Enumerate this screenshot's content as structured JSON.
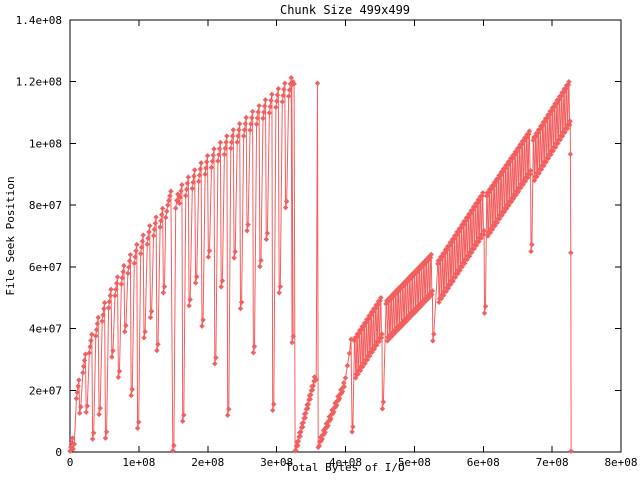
{
  "chart_data": {
    "type": "line",
    "title": "Chunk Size 499x499",
    "xlabel": "Total Bytes of I/O",
    "ylabel": "File Seek Position",
    "xlim": [
      0,
      800000000.0
    ],
    "ylim": [
      0,
      140000000.0
    ],
    "xticks": [
      0,
      100000000.0,
      200000000.0,
      300000000.0,
      400000000.0,
      500000000.0,
      600000000.0,
      700000000.0,
      800000000.0
    ],
    "xtick_labels": [
      "0",
      "1e+08",
      "2e+08",
      "3e+08",
      "4e+08",
      "5e+08",
      "6e+08",
      "7e+08",
      "8e+08"
    ],
    "yticks": [
      0,
      20000000.0,
      40000000.0,
      60000000.0,
      80000000.0,
      100000000.0,
      120000000.0,
      140000000.0
    ],
    "ytick_labels": [
      "0",
      "2e+07",
      "4e+07",
      "6e+07",
      "8e+07",
      "1e+08",
      "1.2e+08",
      "1.4e+08"
    ],
    "grid": false,
    "legend": "none",
    "marker": "diamond",
    "colors": {
      "series": "#f25f5f",
      "axis": "#000000",
      "background": "#ffffff",
      "text": "#000000"
    },
    "value_unit_multiplier": 1000000,
    "shapes": {
      "tooth": [
        [
          0,
          -3,
          "u"
        ],
        [
          1.2,
          -1,
          "u"
        ],
        [
          2.4,
          1,
          "u"
        ],
        [
          3.6,
          3,
          "u"
        ],
        [
          4.8,
          0,
          "d"
        ],
        [
          6.4,
          2,
          "d"
        ]
      ],
      "stair": [
        [
          0,
          0
        ],
        [
          0.9,
          1.4
        ],
        [
          1.8,
          2.8
        ],
        [
          2.7,
          1.6
        ]
      ],
      "stroke": [
        [
          0,
          -1,
          "t"
        ],
        [
          0.8,
          0,
          "t"
        ],
        [
          1.8,
          0,
          "b"
        ],
        [
          2.6,
          1.2,
          "b"
        ]
      ]
    },
    "segments": [
      {
        "kind": "points",
        "name": "origin-cluster",
        "pts": [
          [
            0,
            0.3
          ],
          [
            1.2,
            1.6
          ],
          [
            2.4,
            3
          ],
          [
            3.6,
            4.5
          ],
          [
            4.6,
            1
          ],
          [
            6.2,
            2.6
          ]
        ]
      },
      {
        "kind": "teeth",
        "name": "phase1-sawtooth-a",
        "items": [
          [
            9.3,
            20.3,
            12.6
          ],
          [
            18.7,
            28.7,
            12.9
          ],
          [
            28,
            35.1,
            4.2
          ],
          [
            37.4,
            40.6,
            12.2
          ],
          [
            46.7,
            45.4,
            4.5
          ],
          [
            56,
            49.7,
            30.8
          ],
          [
            65.4,
            53.7,
            24.2
          ],
          [
            74.7,
            57.4,
            39
          ],
          [
            84.1,
            60.9,
            18.3
          ],
          [
            93.4,
            64.2,
            7.7
          ],
          [
            102.7,
            67.3,
            37
          ],
          [
            112.1,
            70.3,
            43.6
          ],
          [
            121.4,
            73.1,
            32.9
          ],
          [
            130.8,
            75.9,
            51.6
          ]
        ]
      },
      {
        "kind": "points",
        "name": "mid-reset-to-zero",
        "pts": [
          [
            139,
            76
          ],
          [
            140.5,
            78
          ],
          [
            142,
            80
          ],
          [
            143.5,
            81.5
          ],
          [
            145,
            83
          ],
          [
            146.5,
            84.5
          ],
          [
            149.2,
            0.4
          ],
          [
            150.9,
            2.1
          ],
          [
            153.5,
            79
          ],
          [
            155,
            81.5
          ],
          [
            156.5,
            83.5
          ]
        ]
      },
      {
        "kind": "teeth",
        "name": "phase1-sawtooth-b",
        "items": [
          [
            158.8,
            83.6,
            10
          ],
          [
            168.1,
            86.1,
            47.4
          ],
          [
            177.5,
            88.4,
            54.8
          ],
          [
            186.8,
            90.7,
            40.8
          ],
          [
            196.1,
            93,
            63.2
          ],
          [
            205.5,
            95.2,
            28.6
          ],
          [
            214.8,
            97.3,
            53.5
          ],
          [
            224.2,
            99.4,
            11.9
          ],
          [
            233.5,
            101.4,
            62.9
          ],
          [
            242.8,
            103.4,
            46.5
          ],
          [
            252.2,
            105.4,
            71.7
          ],
          [
            261.5,
            107.3,
            32.2
          ],
          [
            270.9,
            109.2,
            60.1
          ],
          [
            280.2,
            111.1,
            68.9
          ],
          [
            289.5,
            112.9,
            13.5
          ],
          [
            298.9,
            114.7,
            51.6
          ],
          [
            308.2,
            116.5,
            79.2
          ],
          [
            317.6,
            118.3,
            35.5
          ]
        ]
      },
      {
        "kind": "points",
        "name": "phase1-peak-reset",
        "pts": [
          [
            322,
            119
          ],
          [
            323.8,
            120
          ],
          [
            325.4,
            119.3
          ],
          [
            326.8,
            0.4
          ]
        ]
      },
      {
        "kind": "stairs",
        "name": "staircase-a",
        "steps": [
          [
            328,
            0.5
          ],
          [
            331.6,
            3.5
          ],
          [
            335.2,
            6.5
          ],
          [
            338.8,
            9.5
          ],
          [
            342.4,
            12.5
          ],
          [
            346,
            15.5
          ],
          [
            349.6,
            18.5
          ],
          [
            353.2,
            21.5
          ]
        ]
      },
      {
        "kind": "points",
        "name": "tall-spike",
        "pts": [
          [
            357.5,
            23.5
          ],
          [
            359.3,
            119.5
          ],
          [
            360.4,
            1.5
          ]
        ]
      },
      {
        "kind": "stairs",
        "name": "staircase-b",
        "steps": [
          [
            362,
            2
          ],
          [
            366.2,
            4.2
          ],
          [
            370.4,
            6.4
          ],
          [
            374.6,
            8.6
          ],
          [
            378.8,
            10.8
          ],
          [
            383,
            13
          ],
          [
            387.2,
            15.2
          ],
          [
            391.4,
            17.4
          ],
          [
            395.6,
            19.6
          ]
        ]
      },
      {
        "kind": "points",
        "name": "pre-tail-climb",
        "pts": [
          [
            400,
            24
          ],
          [
            402.8,
            28
          ],
          [
            405.6,
            32
          ],
          [
            408,
            36.5
          ],
          [
            409.6,
            6.5
          ],
          [
            410.8,
            8.2
          ]
        ]
      },
      {
        "kind": "strokes",
        "name": "caterpillar-1",
        "h": 13,
        "items": [
          [
            413,
            37
          ],
          [
            416.4,
            38.2
          ],
          [
            419.8,
            39.4
          ],
          [
            423.2,
            40.6
          ],
          [
            426.6,
            41.7
          ],
          [
            430,
            42.9
          ],
          [
            433.4,
            44.1
          ],
          [
            436.8,
            45.3
          ],
          [
            440.2,
            46.4
          ],
          [
            443.6,
            47.6
          ],
          [
            447,
            48.8
          ],
          [
            450.4,
            50
          ]
        ]
      },
      {
        "kind": "points",
        "name": "dip-1",
        "pts": [
          [
            453.6,
            14
          ],
          [
            455,
            16.2
          ]
        ]
      },
      {
        "kind": "strokes",
        "name": "caterpillar-2",
        "h": 13,
        "items": [
          [
            459,
            49
          ],
          [
            462.4,
            49.8
          ],
          [
            465.8,
            50.6
          ],
          [
            469.2,
            51.4
          ],
          [
            472.6,
            52.2
          ],
          [
            476,
            53
          ],
          [
            479.4,
            53.7
          ],
          [
            482.8,
            54.5
          ],
          [
            486.2,
            55.3
          ],
          [
            489.6,
            56.1
          ],
          [
            493,
            56.9
          ],
          [
            496.4,
            57.7
          ],
          [
            499.8,
            58.4
          ],
          [
            503.2,
            59.2
          ],
          [
            506.6,
            60
          ],
          [
            510,
            60.8
          ],
          [
            513.4,
            61.6
          ],
          [
            516.8,
            62.4
          ],
          [
            520.2,
            63.2
          ],
          [
            523.6,
            64
          ]
        ]
      },
      {
        "kind": "points",
        "name": "dip-2",
        "pts": [
          [
            526.8,
            36
          ],
          [
            528.2,
            38.2
          ]
        ]
      },
      {
        "kind": "strokes",
        "name": "caterpillar-3",
        "h": 13.5,
        "items": [
          [
            534,
            62
          ],
          [
            537.4,
            63.2
          ],
          [
            540.8,
            64.3
          ],
          [
            544.2,
            65.5
          ],
          [
            547.6,
            66.6
          ],
          [
            551,
            67.8
          ],
          [
            554.4,
            68.9
          ],
          [
            557.8,
            70.1
          ],
          [
            561.2,
            71.3
          ],
          [
            564.6,
            72.4
          ],
          [
            568,
            73.6
          ],
          [
            571.4,
            74.7
          ],
          [
            574.8,
            75.9
          ],
          [
            578.2,
            77
          ],
          [
            581.6,
            78.2
          ],
          [
            585,
            79.4
          ],
          [
            588.4,
            80.5
          ],
          [
            591.8,
            81.7
          ],
          [
            595.2,
            82.8
          ],
          [
            598.6,
            84
          ]
        ]
      },
      {
        "kind": "points",
        "name": "dip-3",
        "pts": [
          [
            601.8,
            45
          ],
          [
            603.2,
            47.2
          ]
        ]
      },
      {
        "kind": "strokes",
        "name": "caterpillar-4",
        "h": 14,
        "items": [
          [
            605,
            84
          ],
          [
            608.4,
            85.1
          ],
          [
            611.8,
            86.2
          ],
          [
            615.2,
            87.3
          ],
          [
            618.6,
            88.4
          ],
          [
            622,
            89.6
          ],
          [
            625.4,
            90.7
          ],
          [
            628.8,
            91.8
          ],
          [
            632.2,
            92.9
          ],
          [
            635.6,
            94
          ],
          [
            639,
            95.1
          ],
          [
            642.4,
            96.2
          ],
          [
            645.8,
            97.3
          ],
          [
            649.2,
            98.4
          ],
          [
            652.6,
            99.6
          ],
          [
            656,
            100.7
          ],
          [
            659.4,
            101.8
          ],
          [
            662.8,
            102.9
          ],
          [
            666.2,
            104
          ]
        ]
      },
      {
        "kind": "points",
        "name": "dip-4",
        "pts": [
          [
            669.4,
            65
          ],
          [
            670.6,
            67.2
          ]
        ]
      },
      {
        "kind": "strokes",
        "name": "caterpillar-5",
        "h": 14,
        "items": [
          [
            672.6,
            102
          ],
          [
            676,
            103.2
          ],
          [
            679.4,
            104.4
          ],
          [
            682.8,
            105.6
          ],
          [
            686.2,
            106.8
          ],
          [
            689.6,
            108
          ],
          [
            693,
            109.2
          ],
          [
            696.4,
            110.4
          ],
          [
            699.8,
            111.6
          ],
          [
            703.2,
            112.8
          ],
          [
            706.6,
            114
          ],
          [
            710,
            115.2
          ],
          [
            713.4,
            116.4
          ],
          [
            716.8,
            117.6
          ],
          [
            720.2,
            118.8
          ],
          [
            723.6,
            120
          ]
        ]
      },
      {
        "kind": "points",
        "name": "final-reset",
        "pts": [
          [
            726.6,
            96.5
          ],
          [
            727.1,
            64.6
          ],
          [
            727.6,
            0.3
          ]
        ]
      }
    ]
  }
}
